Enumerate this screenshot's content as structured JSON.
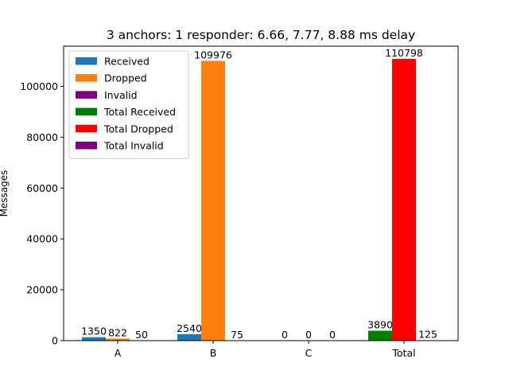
{
  "chart_data": {
    "type": "bar",
    "title": "3 anchors: 1 responder: 6.66, 7.77, 8.88 ms delay",
    "xlabel": "",
    "ylabel": "Messages",
    "categories": [
      "A",
      "B",
      "C",
      "Total"
    ],
    "ylim": [
      0,
      115788
    ],
    "yticks": [
      0,
      20000,
      40000,
      60000,
      80000,
      100000
    ],
    "grid": false,
    "legend_position": "top-left",
    "series": [
      {
        "name": "Received",
        "color": "#1f77b4",
        "values": [
          1350,
          2540,
          0,
          null
        ],
        "labels": [
          "1350",
          "2540",
          "0",
          null
        ]
      },
      {
        "name": "Dropped",
        "color": "#ff7f0e",
        "values": [
          822,
          109976,
          0,
          null
        ],
        "labels": [
          "822",
          "109976",
          "0",
          null
        ]
      },
      {
        "name": "Invalid",
        "color": "#800080",
        "values": [
          50,
          75,
          0,
          null
        ],
        "labels": [
          "50",
          "75",
          "0",
          null
        ]
      },
      {
        "name": "Total Received",
        "color": "#008000",
        "values": [
          null,
          null,
          null,
          3890
        ],
        "labels": [
          null,
          null,
          null,
          "3890"
        ]
      },
      {
        "name": "Total Dropped",
        "color": "#ff0000",
        "values": [
          null,
          null,
          null,
          110798
        ],
        "labels": [
          null,
          null,
          null,
          "110798"
        ]
      },
      {
        "name": "Total Invalid",
        "color": "#800080",
        "values": [
          null,
          null,
          null,
          125
        ],
        "labels": [
          null,
          null,
          null,
          "125"
        ]
      }
    ]
  }
}
